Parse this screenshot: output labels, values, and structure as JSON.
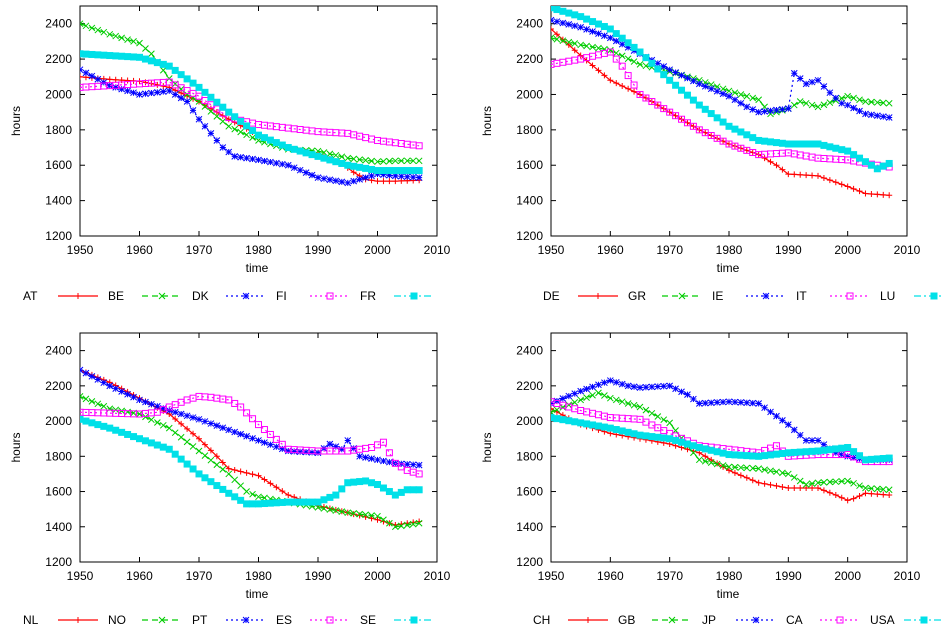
{
  "chart_data": [
    {
      "type": "line",
      "title": "",
      "xlabel": "time",
      "ylabel": "hours",
      "xlim": [
        1950,
        2010
      ],
      "ylim": [
        1200,
        2500
      ],
      "xticks": [
        "1950",
        "1960",
        "1970",
        "1980",
        "1990",
        "2000",
        "2010"
      ],
      "yticks": [
        "1200",
        "1400",
        "1600",
        "1800",
        "2000",
        "2200",
        "2400"
      ],
      "grid": false,
      "legend_position": "bottom",
      "legend_lead": "AT",
      "series": [
        {
          "name": "BE",
          "color": "#ff0000",
          "marker": "plus",
          "dash": "solid",
          "x": [
            1950,
            1955,
            1960,
            1965,
            1970,
            1975,
            1980,
            1985,
            1990,
            1994,
            1996,
            1998,
            2000,
            2003,
            2007
          ],
          "y": [
            2100,
            2085,
            2075,
            2040,
            1960,
            1860,
            1770,
            1700,
            1660,
            1610,
            1560,
            1520,
            1510,
            1510,
            1515
          ]
        },
        {
          "name": "DK",
          "color": "#00cc00",
          "marker": "x",
          "dash": "dashed",
          "x": [
            1950,
            1955,
            1960,
            1962,
            1965,
            1968,
            1970,
            1975,
            1980,
            1985,
            1990,
            1995,
            2000,
            2003,
            2007
          ],
          "y": [
            2400,
            2340,
            2290,
            2230,
            2090,
            2000,
            1960,
            1820,
            1740,
            1690,
            1680,
            1640,
            1620,
            1625,
            1625
          ]
        },
        {
          "name": "FI",
          "color": "#0000ff",
          "marker": "star",
          "dash": "dotted",
          "x": [
            1950,
            1955,
            1960,
            1965,
            1968,
            1970,
            1972,
            1974,
            1976,
            1980,
            1985,
            1990,
            1995,
            2000,
            2003,
            2007
          ],
          "y": [
            2140,
            2050,
            2000,
            2020,
            1960,
            1860,
            1780,
            1700,
            1650,
            1630,
            1600,
            1530,
            1500,
            1550,
            1540,
            1530
          ]
        },
        {
          "name": "FR",
          "color": "#ff00ff",
          "marker": "square-open",
          "dash": "dotted",
          "x": [
            1950,
            1955,
            1960,
            1965,
            1970,
            1975,
            1980,
            1985,
            1990,
            1995,
            2000,
            2007
          ],
          "y": [
            2040,
            2050,
            2060,
            2070,
            1990,
            1870,
            1830,
            1810,
            1790,
            1780,
            1740,
            1710
          ]
        },
        {
          "name": "",
          "color": "#00e0e8",
          "marker": "square-filled",
          "dash": "dashdot",
          "x": [
            1950,
            1955,
            1960,
            1965,
            1970,
            1975,
            1980,
            1985,
            1990,
            1995,
            2000,
            2007
          ],
          "y": [
            2230,
            2220,
            2210,
            2160,
            2040,
            1900,
            1770,
            1700,
            1650,
            1600,
            1570,
            1570
          ]
        }
      ]
    },
    {
      "type": "line",
      "title": "",
      "xlabel": "time",
      "ylabel": "hours",
      "xlim": [
        1950,
        2010
      ],
      "ylim": [
        1200,
        2500
      ],
      "xticks": [
        "1950",
        "1960",
        "1970",
        "1980",
        "1990",
        "2000",
        "2010"
      ],
      "yticks": [
        "1200",
        "1400",
        "1600",
        "1800",
        "2000",
        "2200",
        "2400"
      ],
      "grid": false,
      "legend_position": "bottom",
      "legend_lead": "DE",
      "series": [
        {
          "name": "GR",
          "color": "#ff0000",
          "marker": "plus",
          "dash": "solid",
          "x": [
            1950,
            1955,
            1960,
            1965,
            1970,
            1975,
            1980,
            1985,
            1988,
            1990,
            1995,
            2000,
            2003,
            2007
          ],
          "y": [
            2370,
            2220,
            2080,
            2000,
            1900,
            1800,
            1720,
            1660,
            1600,
            1550,
            1540,
            1480,
            1440,
            1430
          ]
        },
        {
          "name": "IE",
          "color": "#00cc00",
          "marker": "x",
          "dash": "dashed",
          "x": [
            1950,
            1955,
            1960,
            1965,
            1970,
            1975,
            1980,
            1985,
            1987,
            1990,
            1992,
            1995,
            2000,
            2003,
            2007
          ],
          "y": [
            2320,
            2280,
            2250,
            2170,
            2130,
            2080,
            2020,
            1970,
            1890,
            1920,
            1960,
            1930,
            1990,
            1960,
            1950
          ]
        },
        {
          "name": "IT",
          "color": "#0000ff",
          "marker": "star",
          "dash": "dotted",
          "x": [
            1950,
            1955,
            1960,
            1965,
            1970,
            1975,
            1980,
            1983,
            1985,
            1990,
            1991,
            1993,
            1995,
            1997,
            1999,
            2000,
            2003,
            2007
          ],
          "y": [
            2420,
            2380,
            2320,
            2230,
            2140,
            2060,
            1990,
            1930,
            1900,
            1920,
            2120,
            2060,
            2080,
            2010,
            1950,
            1940,
            1890,
            1870
          ]
        },
        {
          "name": "LU",
          "color": "#ff00ff",
          "marker": "square-open",
          "dash": "dotted",
          "x": [
            1950,
            1955,
            1960,
            1962,
            1965,
            1970,
            1975,
            1980,
            1985,
            1990,
            1995,
            2000,
            2005,
            2007
          ],
          "y": [
            2170,
            2200,
            2240,
            2160,
            2000,
            1900,
            1800,
            1720,
            1660,
            1670,
            1640,
            1630,
            1600,
            1590
          ]
        },
        {
          "name": "",
          "color": "#00e0e8",
          "marker": "square-filled",
          "dash": "dashdot",
          "x": [
            1950,
            1955,
            1960,
            1965,
            1970,
            1975,
            1980,
            1985,
            1990,
            1995,
            2000,
            2005,
            2007
          ],
          "y": [
            2490,
            2440,
            2370,
            2240,
            2080,
            1940,
            1820,
            1740,
            1720,
            1720,
            1680,
            1580,
            1610
          ]
        }
      ]
    },
    {
      "type": "line",
      "title": "",
      "xlabel": "time",
      "ylabel": "hours",
      "xlim": [
        1950,
        2010
      ],
      "ylim": [
        1200,
        2500
      ],
      "xticks": [
        "1950",
        "1960",
        "1970",
        "1980",
        "1990",
        "2000",
        "2010"
      ],
      "yticks": [
        "1200",
        "1400",
        "1600",
        "1800",
        "2000",
        "2200",
        "2400"
      ],
      "grid": false,
      "legend_position": "bottom",
      "legend_lead": "NL",
      "series": [
        {
          "name": "NO",
          "color": "#ff0000",
          "marker": "plus",
          "dash": "solid",
          "x": [
            1950,
            1955,
            1960,
            1965,
            1970,
            1973,
            1975,
            1980,
            1985,
            1990,
            1995,
            2000,
            2003,
            2007
          ],
          "y": [
            2290,
            2220,
            2130,
            2040,
            1900,
            1800,
            1730,
            1690,
            1580,
            1520,
            1480,
            1440,
            1410,
            1430
          ]
        },
        {
          "name": "PT",
          "color": "#00cc00",
          "marker": "x",
          "dash": "dashed",
          "x": [
            1950,
            1955,
            1960,
            1965,
            1970,
            1975,
            1978,
            1980,
            1985,
            1990,
            1995,
            2000,
            2003,
            2007
          ],
          "y": [
            2140,
            2070,
            2040,
            1960,
            1830,
            1700,
            1600,
            1570,
            1540,
            1510,
            1480,
            1460,
            1400,
            1420
          ]
        },
        {
          "name": "ES",
          "color": "#0000ff",
          "marker": "star",
          "dash": "dotted",
          "x": [
            1950,
            1955,
            1960,
            1965,
            1970,
            1975,
            1980,
            1985,
            1990,
            1992,
            1994,
            1995,
            1997,
            2000,
            2003,
            2007
          ],
          "y": [
            2290,
            2200,
            2120,
            2060,
            2010,
            1950,
            1890,
            1830,
            1820,
            1870,
            1840,
            1890,
            1800,
            1780,
            1760,
            1750
          ]
        },
        {
          "name": "SE",
          "color": "#ff00ff",
          "marker": "square-open",
          "dash": "dotted",
          "x": [
            1950,
            1955,
            1960,
            1963,
            1965,
            1968,
            1970,
            1972,
            1975,
            1977,
            1980,
            1985,
            1990,
            1995,
            1999,
            2001,
            2003,
            2005,
            2007
          ],
          "y": [
            2050,
            2045,
            2040,
            2050,
            2080,
            2120,
            2140,
            2135,
            2120,
            2080,
            1980,
            1840,
            1830,
            1830,
            1850,
            1880,
            1760,
            1720,
            1700
          ]
        },
        {
          "name": "",
          "color": "#00e0e8",
          "marker": "square-filled",
          "dash": "dashdot",
          "x": [
            1950,
            1955,
            1960,
            1965,
            1970,
            1975,
            1978,
            1980,
            1985,
            1990,
            1993,
            1995,
            1998,
            2000,
            2003,
            2005,
            2007
          ],
          "y": [
            2010,
            1960,
            1900,
            1840,
            1700,
            1590,
            1530,
            1530,
            1540,
            1540,
            1580,
            1650,
            1660,
            1640,
            1580,
            1610,
            1610
          ]
        }
      ]
    },
    {
      "type": "line",
      "title": "",
      "xlabel": "time",
      "ylabel": "hours",
      "xlim": [
        1950,
        2010
      ],
      "ylim": [
        1200,
        2500
      ],
      "xticks": [
        "1950",
        "1960",
        "1970",
        "1980",
        "1990",
        "2000",
        "2010"
      ],
      "yticks": [
        "1200",
        "1400",
        "1600",
        "1800",
        "2000",
        "2200",
        "2400"
      ],
      "grid": false,
      "legend_position": "bottom",
      "legend_lead": "CH",
      "series": [
        {
          "name": "GB",
          "color": "#ff0000",
          "marker": "plus",
          "dash": "solid",
          "x": [
            1950,
            1955,
            1960,
            1965,
            1970,
            1975,
            1980,
            1985,
            1990,
            1995,
            1998,
            2000,
            2001,
            2003,
            2007
          ],
          "y": [
            2070,
            1980,
            1930,
            1900,
            1870,
            1820,
            1720,
            1650,
            1620,
            1620,
            1580,
            1550,
            1560,
            1590,
            1580
          ]
        },
        {
          "name": "JP",
          "color": "#00cc00",
          "marker": "x",
          "dash": "dashed",
          "x": [
            1950,
            1955,
            1958,
            1960,
            1965,
            1970,
            1973,
            1975,
            1980,
            1985,
            1990,
            1993,
            1995,
            2000,
            2003,
            2007
          ],
          "y": [
            2050,
            2120,
            2160,
            2130,
            2080,
            1990,
            1860,
            1780,
            1740,
            1730,
            1700,
            1640,
            1650,
            1660,
            1620,
            1610
          ]
        },
        {
          "name": "CA",
          "color": "#0000ff",
          "marker": "star",
          "dash": "dotted",
          "x": [
            1950,
            1955,
            1960,
            1963,
            1965,
            1970,
            1973,
            1975,
            1980,
            1985,
            1990,
            1993,
            1995,
            1998,
            2000,
            2003,
            2007
          ],
          "y": [
            2100,
            2170,
            2230,
            2200,
            2190,
            2200,
            2150,
            2100,
            2110,
            2100,
            1980,
            1890,
            1890,
            1820,
            1800,
            1780,
            1780
          ]
        },
        {
          "name": "USA",
          "color": "#ff00ff",
          "marker": "square-open",
          "dash": "dotted",
          "x": [
            1950,
            1955,
            1960,
            1965,
            1970,
            1975,
            1980,
            1985,
            1988,
            1990,
            1995,
            2000,
            2003,
            2007
          ],
          "y": [
            2110,
            2060,
            2020,
            2010,
            1930,
            1860,
            1840,
            1820,
            1860,
            1800,
            1810,
            1810,
            1770,
            1770
          ]
        },
        {
          "name": "",
          "color": "#00e0e8",
          "marker": "square-filled",
          "dash": "dashdot",
          "x": [
            1950,
            1955,
            1960,
            1965,
            1970,
            1975,
            1980,
            1985,
            1990,
            1995,
            2000,
            2003,
            2007
          ],
          "y": [
            2020,
            1990,
            1960,
            1920,
            1900,
            1850,
            1810,
            1800,
            1820,
            1830,
            1850,
            1780,
            1790
          ]
        }
      ]
    }
  ]
}
